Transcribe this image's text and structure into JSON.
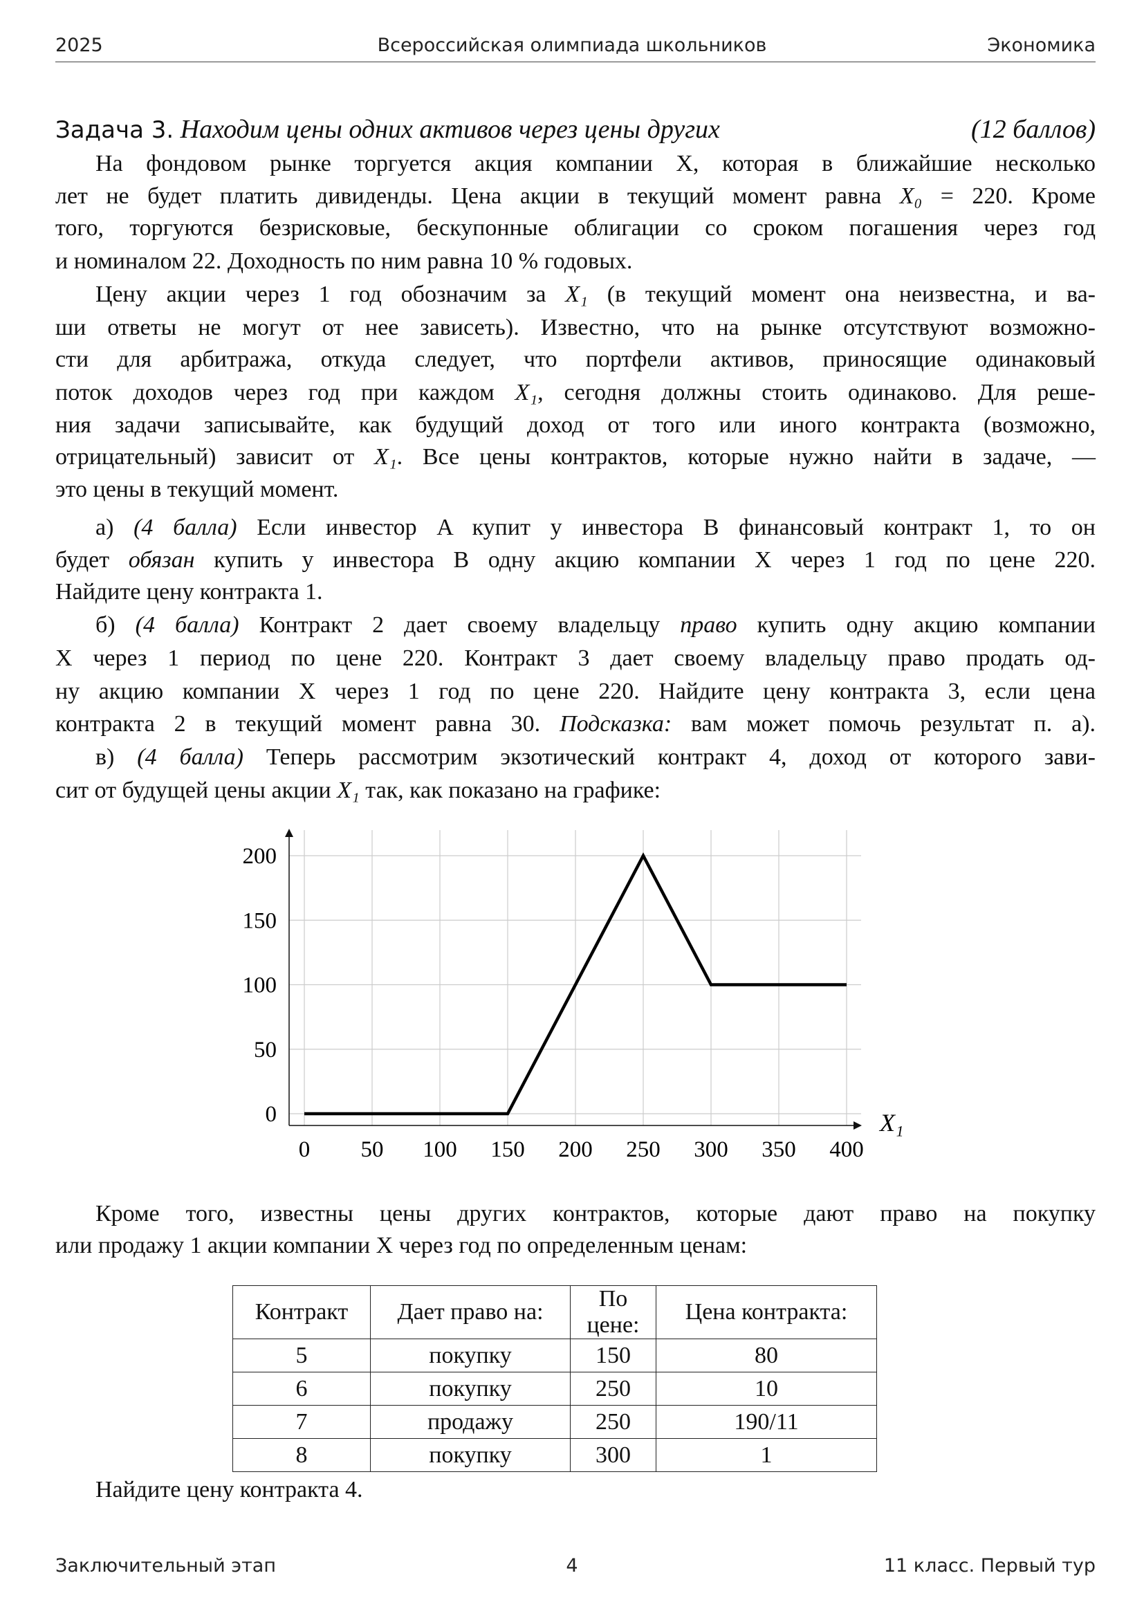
{
  "header": {
    "year": "2025",
    "center": "Всероссийская олимпиада школьников",
    "subject": "Экономика"
  },
  "footer": {
    "stage": "Заключительный этап",
    "page": "4",
    "grade": "11 класс. Первый тур"
  },
  "problem": {
    "label": "Задача 3.",
    "title": "Находим цены одних активов через цены других",
    "points": "(12 баллов)"
  },
  "lines": [
    {
      "y": 237,
      "cls": "indent",
      "segs": [
        {
          "t": "На фондовом рынке торгуется акция компании X, которая в ближайшие несколько"
        }
      ]
    },
    {
      "y": 284,
      "segs": [
        {
          "t": "лет не будет платить дивиденды. Цена акции в текущий момент равна "
        },
        {
          "t": "X₀",
          "i": 1
        },
        {
          "t": " = 220. Кроме"
        }
      ]
    },
    {
      "y": 330,
      "segs": [
        {
          "t": "того, торгуются безрисковые, бескупонные облигации со сроком погашения через год"
        }
      ]
    },
    {
      "y": 378,
      "cls": "last",
      "segs": [
        {
          "t": "и  номиналом 22. Доходность по ним равна 10 % годовых."
        }
      ]
    },
    {
      "y": 426,
      "cls": "indent",
      "segs": [
        {
          "t": "Цену акции через 1 год обозначим за "
        },
        {
          "t": "X₁",
          "i": 1
        },
        {
          "t": " (в текущий момент она неизвестна, и ва-"
        }
      ]
    },
    {
      "y": 474,
      "segs": [
        {
          "t": "ши ответы не могут от нее зависеть). Известно, что на рынке отсутствуют возможно-"
        }
      ]
    },
    {
      "y": 520,
      "segs": [
        {
          "t": "сти для арбитража, откуда следует, что портфели активов, приносящие одинаковый"
        }
      ]
    },
    {
      "y": 568,
      "segs": [
        {
          "t": "поток доходов через год при каждом "
        },
        {
          "t": "X₁",
          "i": 1
        },
        {
          "t": ", сегодня должны стоить одинаково. Для реше-"
        }
      ]
    },
    {
      "y": 615,
      "segs": [
        {
          "t": "ния задачи записывайте, как будущий доход от того или иного контракта (возможно,"
        }
      ]
    },
    {
      "y": 661,
      "segs": [
        {
          "t": "отрицательный) зависит от "
        },
        {
          "t": "X₁",
          "i": 1
        },
        {
          "t": ". Все цены контрактов, которые нужно найти в задаче, —"
        }
      ]
    },
    {
      "y": 708,
      "cls": "last",
      "segs": [
        {
          "t": "это цены в текущий момент."
        }
      ]
    },
    {
      "y": 763,
      "cls": "indent",
      "segs": [
        {
          "t": "а)  "
        },
        {
          "t": "(4 балла)",
          "i": 1
        },
        {
          "t": " Если инвестор A купит у инвестора B финансовый контракт 1, то он"
        }
      ]
    },
    {
      "y": 810,
      "segs": [
        {
          "t": "будет "
        },
        {
          "t": "обязан",
          "i": 1
        },
        {
          "t": " купить у инвестора B одну акцию компании X через 1 год по цене 220."
        }
      ]
    },
    {
      "y": 856,
      "cls": "last",
      "segs": [
        {
          "t": "Найдите цену контракта 1."
        }
      ]
    },
    {
      "y": 904,
      "cls": "indent",
      "segs": [
        {
          "t": "б)  "
        },
        {
          "t": "(4 балла)",
          "i": 1
        },
        {
          "t": " Контракт 2 дает своему владельцу "
        },
        {
          "t": "право",
          "i": 1
        },
        {
          "t": " купить одну акцию компании"
        }
      ]
    },
    {
      "y": 952,
      "segs": [
        {
          "t": "X через 1 период по цене 220. Контракт 3 дает своему владельцу право продать од-"
        }
      ]
    },
    {
      "y": 1000,
      "segs": [
        {
          "t": "ну акцию компании X через 1 год по цене 220. Найдите цену контракта 3, если цена"
        }
      ]
    },
    {
      "y": 1047,
      "segs": [
        {
          "t": "контракта 2 в текущий момент равна 30. "
        },
        {
          "t": "Подсказка:",
          "i": 1
        },
        {
          "t": " вам может помочь результат п. а)."
        }
      ]
    },
    {
      "y": 1095,
      "cls": "indent",
      "segs": [
        {
          "t": "в)  "
        },
        {
          "t": "(4 балла)",
          "i": 1
        },
        {
          "t": " Теперь рассмотрим экзотический контракт 4, доход от  которого зави-"
        }
      ]
    },
    {
      "y": 1143,
      "cls": "last",
      "segs": [
        {
          "t": "сит от будущей цены акции "
        },
        {
          "t": "X₁",
          "i": 1
        },
        {
          "t": " так, как показано на графике:"
        }
      ]
    },
    {
      "y": 1755,
      "cls": "indent",
      "segs": [
        {
          "t": "Кроме того, известны цены других контрактов, которые дают право на покупку"
        }
      ]
    },
    {
      "y": 1801,
      "cls": "last",
      "segs": [
        {
          "t": "или продажу 1 акции компании X через год по определенным ценам:"
        }
      ]
    },
    {
      "y": 2154,
      "cls": "indent last",
      "segs": [
        {
          "t": "Найдите цену контракта 4."
        }
      ]
    }
  ],
  "chart_data": {
    "type": "line",
    "x": [
      0,
      150,
      250,
      300,
      400
    ],
    "y": [
      0,
      0,
      200,
      100,
      100
    ],
    "xlabel": "X₁",
    "ylabel": "",
    "xlim": [
      0,
      400
    ],
    "ylim": [
      0,
      200
    ],
    "xticks": [
      "0",
      "50",
      "100",
      "150",
      "200",
      "250",
      "300",
      "350",
      "400"
    ],
    "yticks": [
      "0",
      "50",
      "100",
      "150",
      "200"
    ],
    "grid": true
  },
  "table": {
    "headers": [
      "Контракт",
      "Дает право на:",
      "По цене:",
      "Цена контракта:"
    ],
    "rows": [
      [
        "5",
        "покупку",
        "150",
        "80"
      ],
      [
        "6",
        "покупку",
        "250",
        "10"
      ],
      [
        "7",
        "продажу",
        "250",
        "190/11"
      ],
      [
        "8",
        "покупку",
        "300",
        "1"
      ]
    ]
  }
}
